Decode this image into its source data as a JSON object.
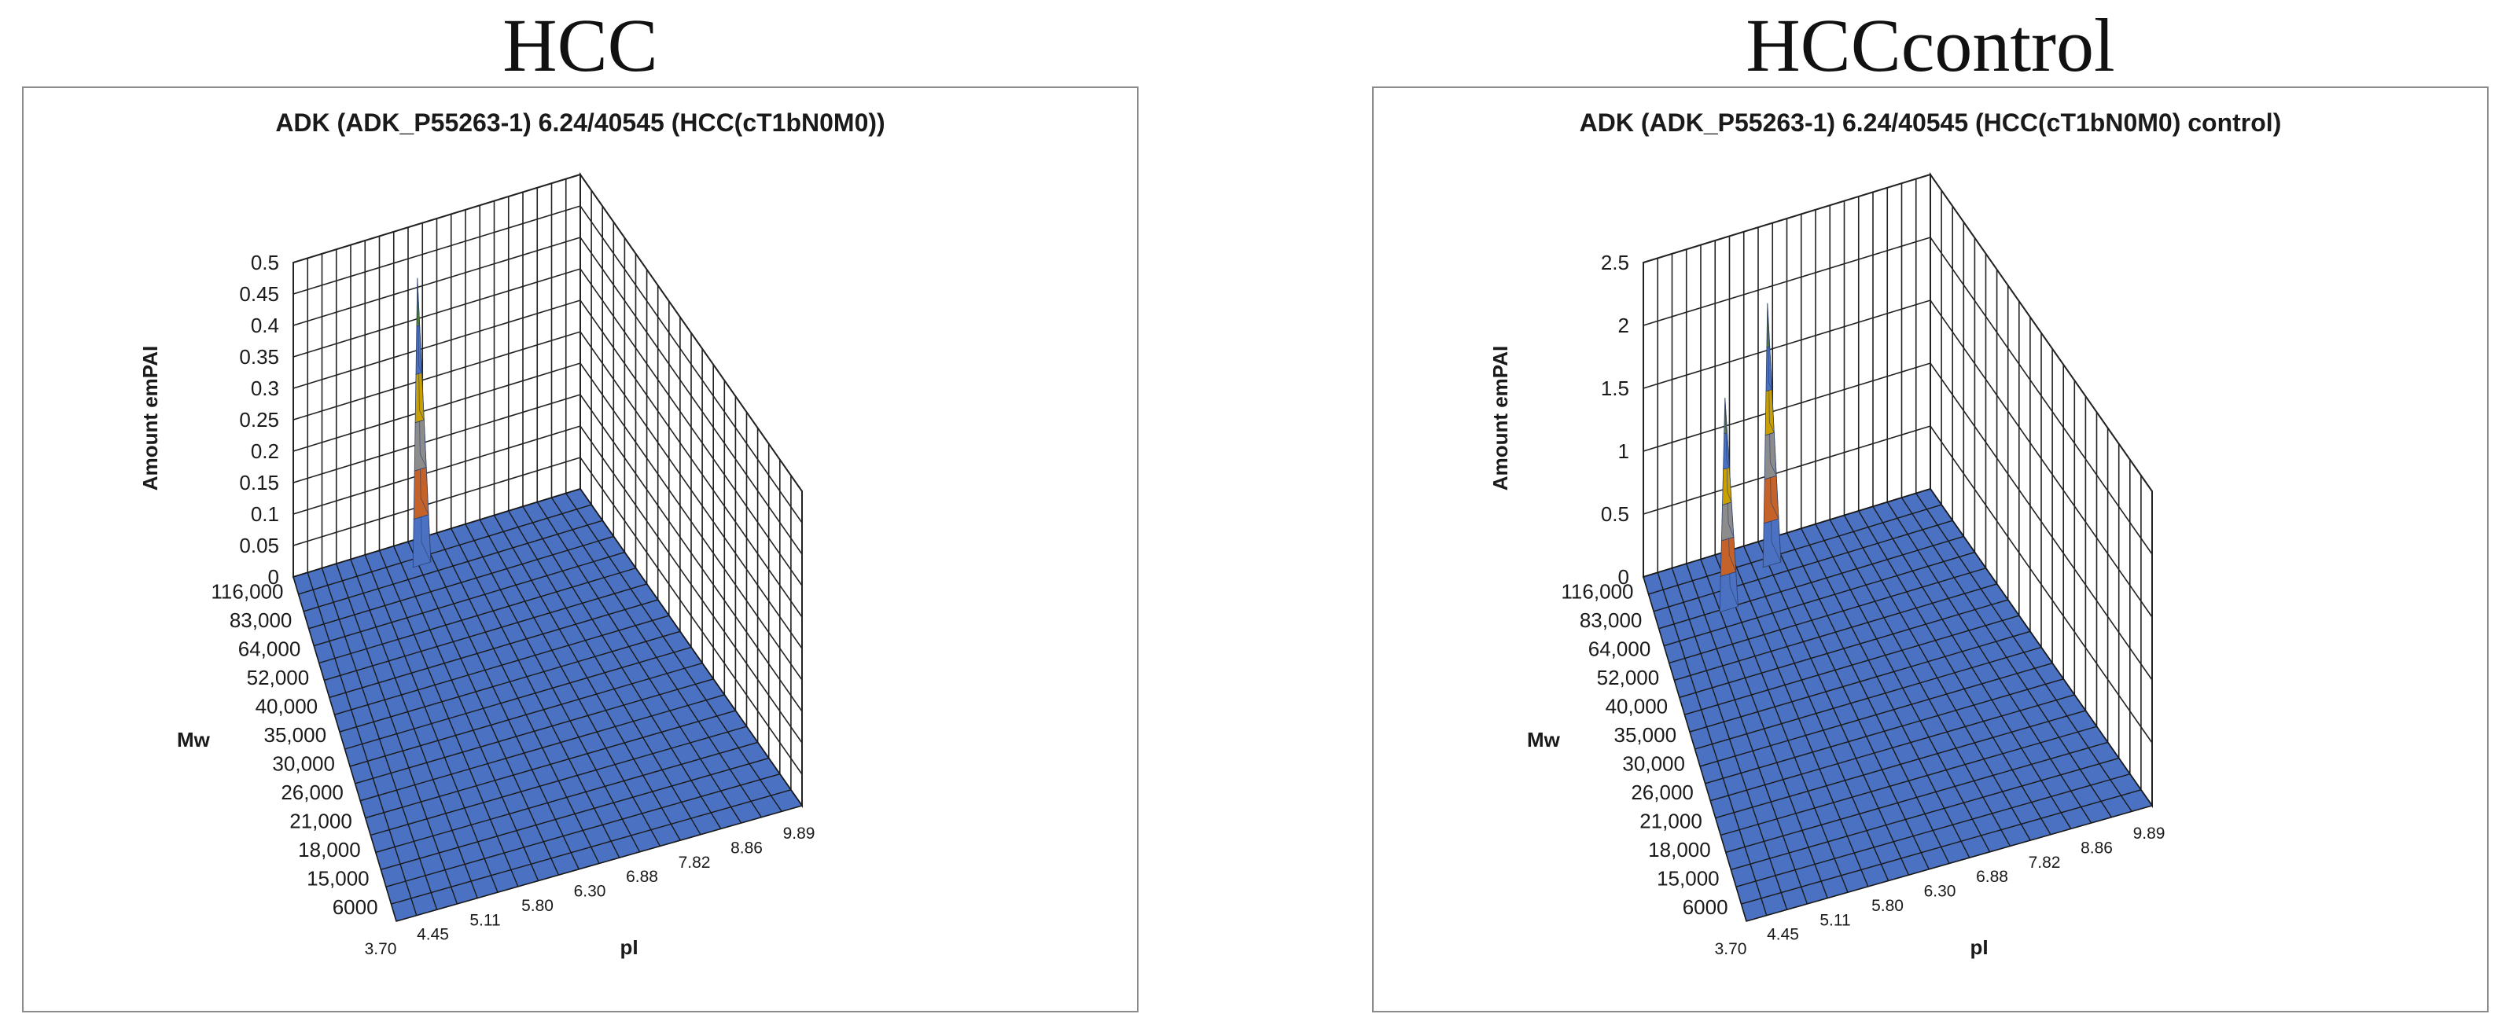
{
  "headers": {
    "left": "HCC",
    "right": "HCCcontrol"
  },
  "chart_data": [
    {
      "type": "3d-surface",
      "title": "ADK (ADK_P55263-1) 6.24/40545 (HCC(cT1bN0M0))",
      "zlabel": "Amount  emPAI",
      "ylabel": "Mw",
      "xlabel": "pI",
      "zticks": [
        "0",
        "0.05",
        "0.1",
        "0.15",
        "0.2",
        "0.25",
        "0.3",
        "0.35",
        "0.4",
        "0.45",
        "0.5"
      ],
      "zlim": [
        0,
        0.5
      ],
      "mw_ticks": [
        "6000",
        "15,000",
        "18,000",
        "21,000",
        "26,000",
        "30,000",
        "35,000",
        "40,000",
        "52,000",
        "64,000",
        "83,000",
        "116,000"
      ],
      "pi_ticks": [
        "3.70",
        "4.45",
        "5.11",
        "5.80",
        "6.30",
        "6.88",
        "7.82",
        "8.86",
        "9.89"
      ],
      "peaks": [
        {
          "pI": 6.24,
          "Mw": 116000,
          "emPAI": 0.44
        }
      ],
      "colors": {
        "surface": "#4a71c2",
        "grid": "#1a1a1a",
        "wall_grid": "#222222"
      }
    },
    {
      "type": "3d-surface",
      "title": "ADK (ADK_P55263-1) 6.24/40545 (HCC(cT1bN0M0) control)",
      "zlabel": "Amount  emPAI",
      "ylabel": "Mw",
      "xlabel": "pI",
      "zticks": [
        "0",
        "0.5",
        "1",
        "1.5",
        "2",
        "2.5"
      ],
      "zlim": [
        0,
        2.5
      ],
      "mw_ticks": [
        "6000",
        "15,000",
        "18,000",
        "21,000",
        "26,000",
        "30,000",
        "35,000",
        "40,000",
        "52,000",
        "64,000",
        "83,000",
        "116,000"
      ],
      "pi_ticks": [
        "3.70",
        "4.45",
        "5.11",
        "5.80",
        "6.30",
        "6.88",
        "7.82",
        "8.86",
        "9.89"
      ],
      "peaks": [
        {
          "pI": 5.11,
          "Mw": 83000,
          "emPAI": 1.6
        },
        {
          "pI": 6.24,
          "Mw": 116000,
          "emPAI": 2.0
        }
      ],
      "colors": {
        "surface": "#4a71c2",
        "grid": "#1a1a1a",
        "wall_grid": "#222222"
      }
    }
  ]
}
